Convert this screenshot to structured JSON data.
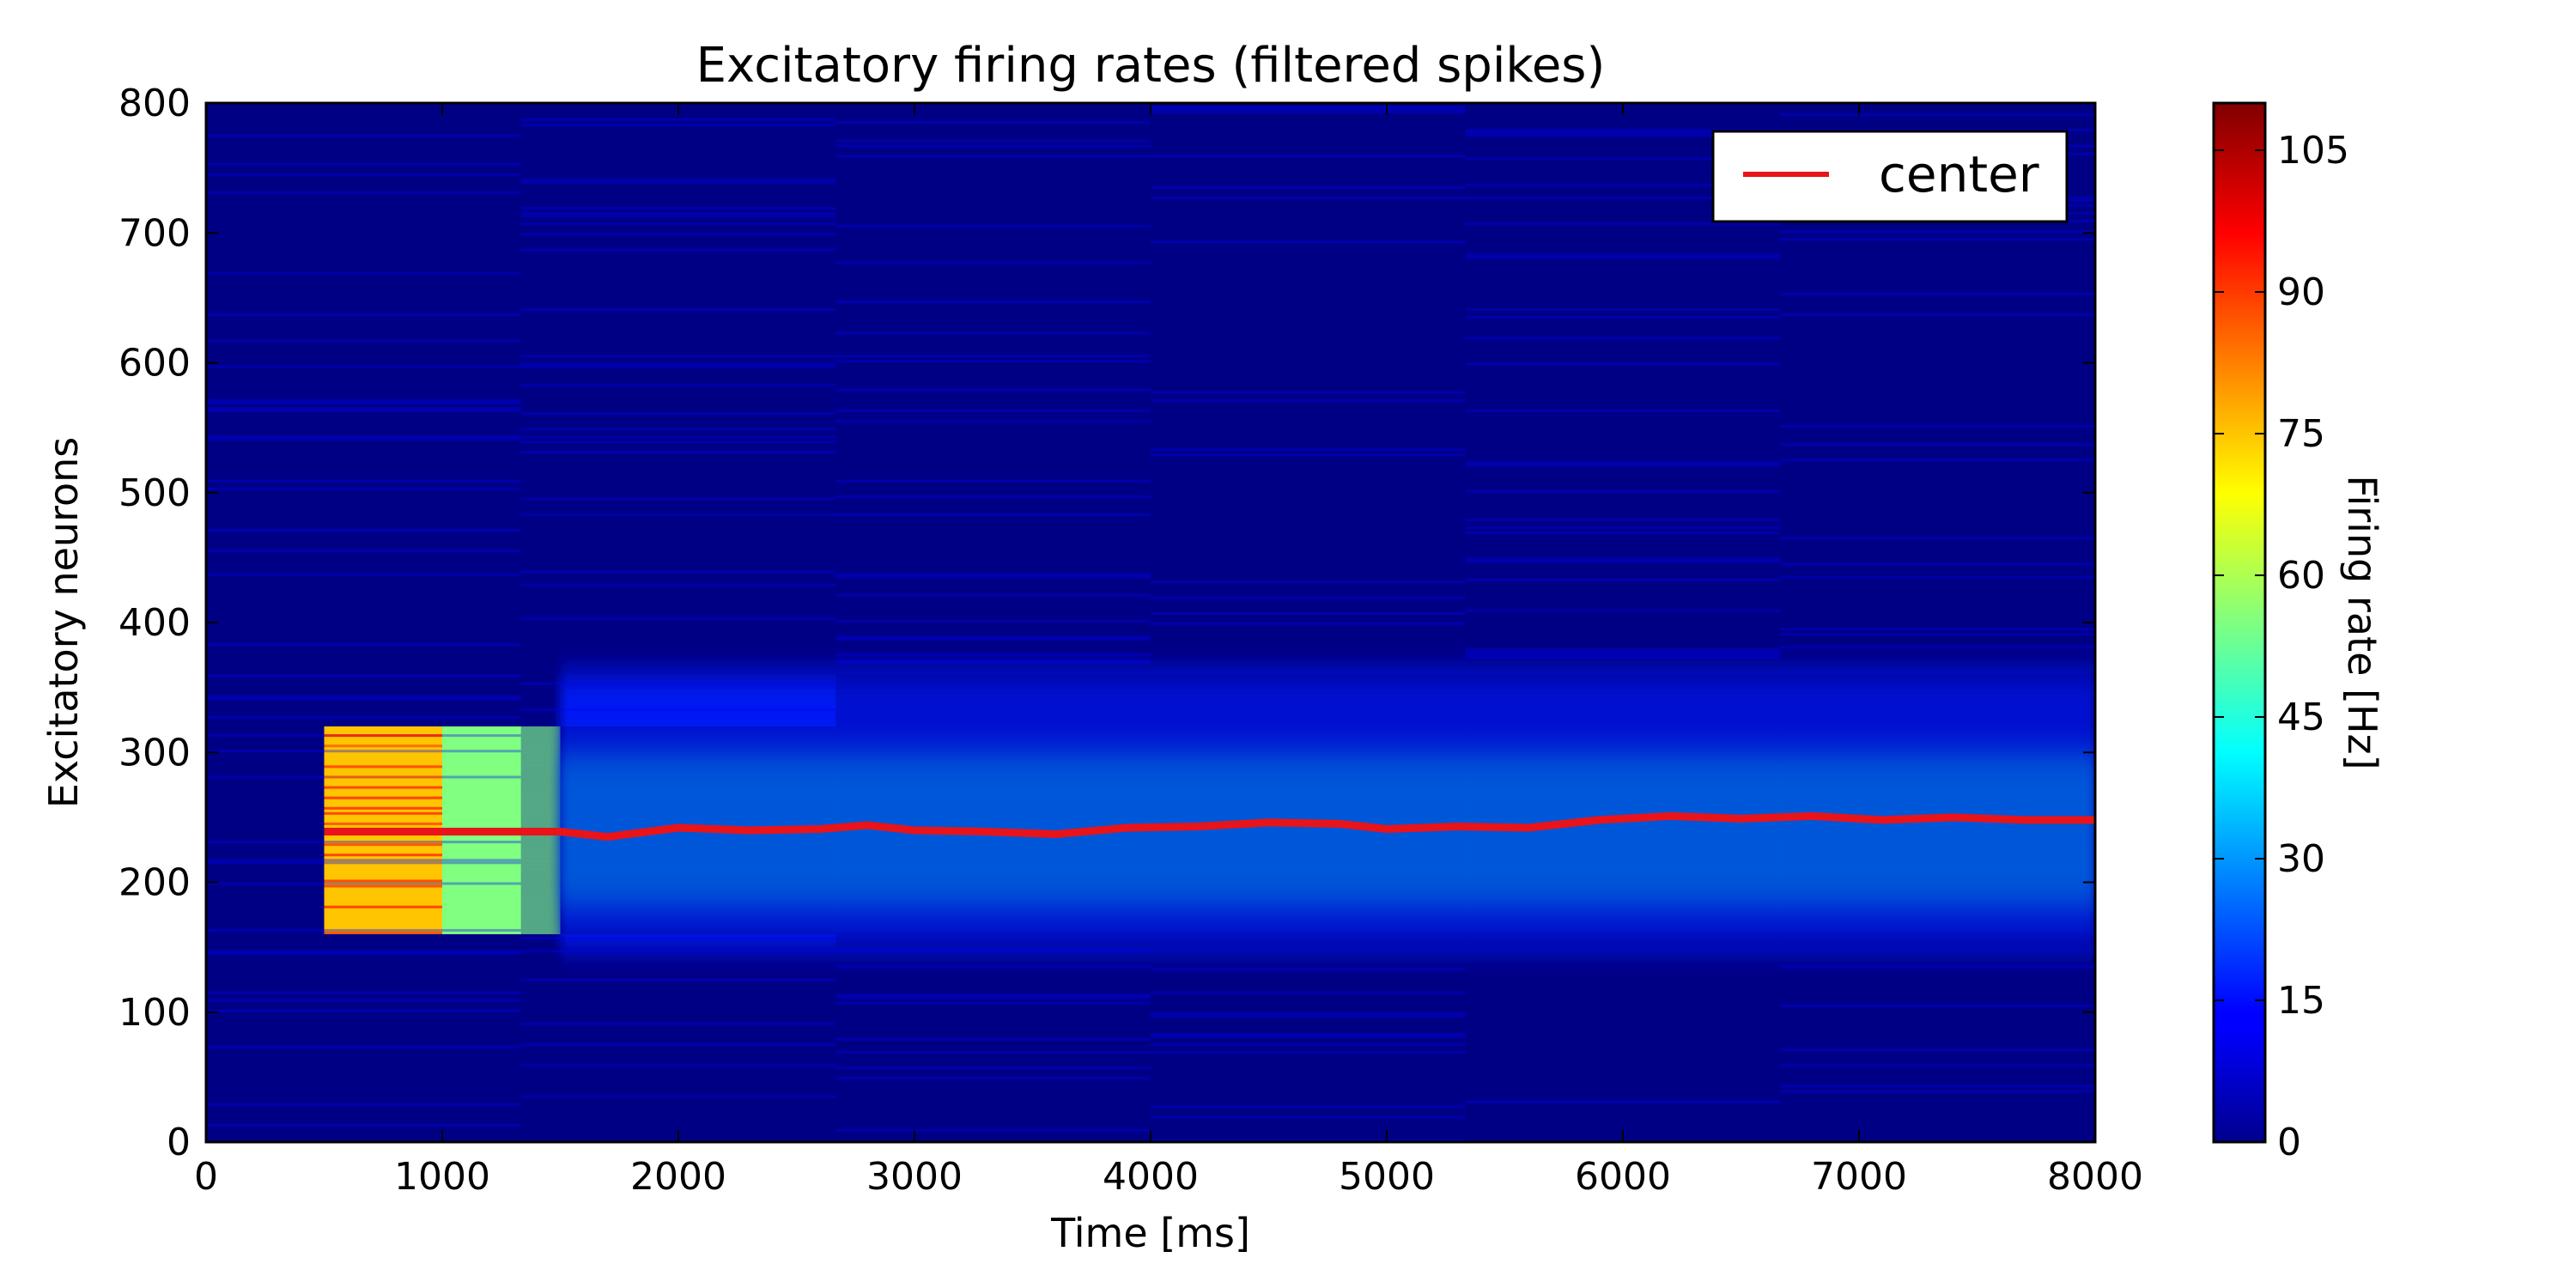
{
  "chart_data": {
    "type": "heatmap",
    "title": "Excitatory firing rates (filtered spikes)",
    "xlabel": "Time [ms]",
    "ylabel": "Excitatory neurons",
    "xlim": [
      0,
      8000
    ],
    "ylim": [
      0,
      800
    ],
    "xticks": [
      "0",
      "1000",
      "2000",
      "3000",
      "4000",
      "5000",
      "6000",
      "7000",
      "8000"
    ],
    "yticks": [
      "0",
      "100",
      "200",
      "300",
      "400",
      "500",
      "600",
      "700",
      "800"
    ],
    "colorbar": {
      "label": "Firing rate [Hz]",
      "range": [
        0,
        110
      ],
      "ticks": [
        "0",
        "15",
        "30",
        "45",
        "60",
        "75",
        "90",
        "105"
      ],
      "colormap": "jet"
    },
    "activity_regions": [
      {
        "t_start": 500,
        "t_end": 1000,
        "n_low": 160,
        "n_high": 320,
        "rate": 75
      },
      {
        "t_start": 1000,
        "t_end": 1500,
        "n_low": 160,
        "n_high": 320,
        "rate": 55
      },
      {
        "t_start": 1500,
        "t_end": 8000,
        "n_low": 150,
        "n_high": 360,
        "rate": 30
      }
    ],
    "background_rate": 2,
    "legend": {
      "position": "upper right",
      "entries": [
        "center"
      ]
    },
    "series": [
      {
        "name": "center",
        "color": "#e8141a",
        "x": [
          500,
          1000,
          1500,
          1700,
          2000,
          2300,
          2600,
          2800,
          3000,
          3300,
          3600,
          3900,
          4200,
          4500,
          4800,
          5000,
          5300,
          5600,
          5900,
          6200,
          6500,
          6800,
          7100,
          7400,
          7700,
          8000
        ],
        "y": [
          239,
          239,
          239,
          235,
          242,
          240,
          241,
          244,
          240,
          239,
          237,
          242,
          243,
          246,
          245,
          241,
          243,
          242,
          248,
          251,
          249,
          251,
          248,
          250,
          248,
          248
        ]
      }
    ]
  }
}
